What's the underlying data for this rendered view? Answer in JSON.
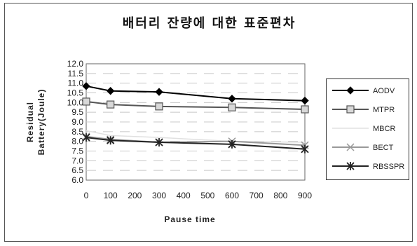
{
  "title": "배터리 잔량에 대한 표준편차",
  "chart_data": {
    "type": "line",
    "title": "배터리 잔량에 대한 표준편차",
    "xlabel": "Pause time",
    "ylabel": "Residual Battery(Joule)",
    "ylabel_lines": [
      "Residual",
      "Battery(Joule)"
    ],
    "x": [
      0,
      100,
      300,
      600,
      900
    ],
    "xlim": [
      0,
      900
    ],
    "ylim": [
      6.0,
      12.0
    ],
    "xticks": [
      "0",
      "100",
      "200",
      "300",
      "400",
      "500",
      "600",
      "700",
      "800",
      "900"
    ],
    "yticks": [
      "6.0",
      "6.5",
      "7.0",
      "7.5",
      "8.0",
      "8.5",
      "9.0",
      "9.5",
      "10.0",
      "10.5",
      "11.0",
      "11.5",
      "12.0"
    ],
    "legend_position": "right",
    "series": [
      {
        "name": "AODV",
        "values": [
          10.85,
          10.6,
          10.55,
          10.2,
          10.1
        ],
        "color": "#000000",
        "marker": "diamond"
      },
      {
        "name": "MTPR",
        "values": [
          10.05,
          9.9,
          9.8,
          9.75,
          9.65
        ],
        "color": "#555555",
        "marker": "square"
      },
      {
        "name": "MBCR",
        "values": [
          8.55,
          8.3,
          8.2,
          8.0,
          7.95
        ],
        "color": "#e0e0e0",
        "marker": "none"
      },
      {
        "name": "BECT",
        "values": [
          8.25,
          8.1,
          7.95,
          8.0,
          7.8
        ],
        "color": "#999999",
        "marker": "x"
      },
      {
        "name": "RBSSPR",
        "values": [
          8.2,
          8.05,
          7.95,
          7.85,
          7.6
        ],
        "color": "#222222",
        "marker": "star"
      }
    ]
  }
}
